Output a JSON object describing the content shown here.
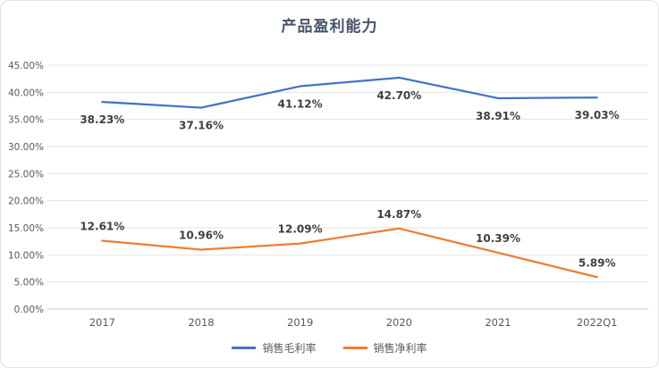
{
  "chart_data": {
    "type": "line",
    "title": "产品盈利能力",
    "categories": [
      "2017",
      "2018",
      "2019",
      "2020",
      "2021",
      "2022Q1"
    ],
    "series": [
      {
        "name": "销售毛利率",
        "color": "#4472C4",
        "values": [
          38.23,
          37.16,
          41.12,
          42.7,
          38.91,
          39.03
        ],
        "data_labels": [
          "38.23%",
          "37.16%",
          "41.12%",
          "42.70%",
          "38.91%",
          "39.03%"
        ],
        "label_side": "below"
      },
      {
        "name": "销售净利率",
        "color": "#ED7D31",
        "values": [
          12.61,
          10.96,
          12.09,
          14.87,
          10.39,
          5.89
        ],
        "data_labels": [
          "12.61%",
          "10.96%",
          "12.09%",
          "14.87%",
          "10.39%",
          "5.89%"
        ],
        "label_side": "above"
      }
    ],
    "ylim": [
      0,
      45
    ],
    "ytick_labels": [
      "0.00%",
      "5.00%",
      "10.00%",
      "15.00%",
      "20.00%",
      "25.00%",
      "30.00%",
      "35.00%",
      "40.00%",
      "45.00%"
    ],
    "grid": true,
    "legend_position": "bottom",
    "colors": {
      "title": "#44546A",
      "axis_text": "#595959",
      "gridline": "#e2e2e2",
      "axis_line": "#c6c6c6",
      "data_label": "#404040"
    }
  }
}
